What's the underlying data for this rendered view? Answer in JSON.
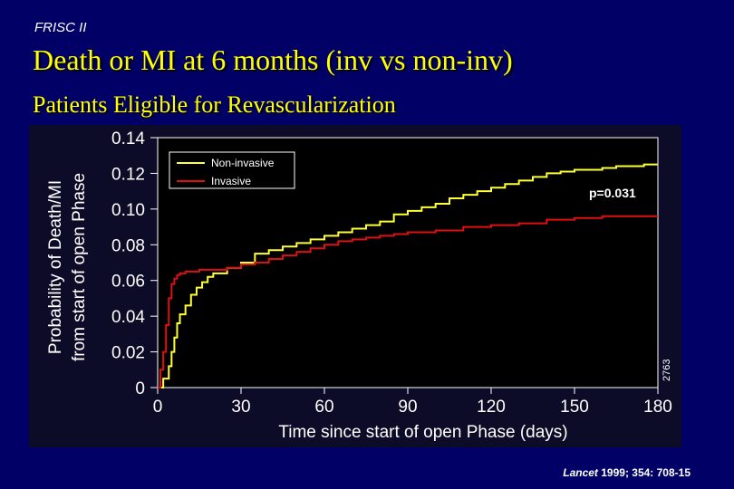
{
  "header": {
    "study": "FRISC II",
    "title": "Death or MI at 6 months (inv vs non-inv)",
    "subtitle": "Patients Eligible for Revascularization"
  },
  "citation": {
    "journal": "Lancet",
    "details": " 1999; 354: 708-15"
  },
  "figure_code": "2763",
  "colors": {
    "background": "#000066",
    "title": "#ffff00",
    "non_invasive": "#ffff33",
    "invasive": "#dd1111"
  },
  "chart_data": {
    "type": "line",
    "title": "",
    "xlabel": "Time since start of open Phase (days)",
    "ylabel": "Probability of Death/MI",
    "ylabel2": "from start of open Phase",
    "xlim": [
      0,
      180
    ],
    "ylim": [
      0,
      0.14
    ],
    "x_ticks": [
      0,
      30,
      60,
      90,
      120,
      150,
      180
    ],
    "x_tick_labels": [
      "0",
      "30",
      "60",
      "90",
      "120",
      "150",
      "180"
    ],
    "y_ticks": [
      0,
      0.02,
      0.04,
      0.06,
      0.08,
      0.1,
      0.12,
      0.14
    ],
    "y_tick_labels": [
      "0",
      "0.02",
      "0.04",
      "0.06",
      "0.08",
      "0.10",
      "0.12",
      "0.14"
    ],
    "legend_position": "top-left",
    "annotation": "p=0.031",
    "series": [
      {
        "name": "Non-invasive",
        "color": "#ffff33",
        "points": [
          [
            0,
            0.0
          ],
          [
            2,
            0.005
          ],
          [
            4,
            0.012
          ],
          [
            5,
            0.02
          ],
          [
            6,
            0.028
          ],
          [
            7,
            0.036
          ],
          [
            8,
            0.041
          ],
          [
            10,
            0.046
          ],
          [
            12,
            0.052
          ],
          [
            14,
            0.056
          ],
          [
            16,
            0.059
          ],
          [
            18,
            0.062
          ],
          [
            20,
            0.064
          ],
          [
            25,
            0.067
          ],
          [
            30,
            0.07
          ],
          [
            35,
            0.075
          ],
          [
            40,
            0.077
          ],
          [
            45,
            0.079
          ],
          [
            50,
            0.081
          ],
          [
            55,
            0.083
          ],
          [
            60,
            0.085
          ],
          [
            65,
            0.087
          ],
          [
            70,
            0.089
          ],
          [
            75,
            0.091
          ],
          [
            80,
            0.093
          ],
          [
            85,
            0.097
          ],
          [
            90,
            0.099
          ],
          [
            95,
            0.101
          ],
          [
            100,
            0.103
          ],
          [
            105,
            0.106
          ],
          [
            110,
            0.108
          ],
          [
            115,
            0.11
          ],
          [
            120,
            0.112
          ],
          [
            125,
            0.114
          ],
          [
            130,
            0.116
          ],
          [
            135,
            0.118
          ],
          [
            140,
            0.12
          ],
          [
            145,
            0.121
          ],
          [
            150,
            0.122
          ],
          [
            155,
            0.122
          ],
          [
            160,
            0.123
          ],
          [
            165,
            0.124
          ],
          [
            170,
            0.124
          ],
          [
            175,
            0.125
          ],
          [
            180,
            0.125
          ]
        ]
      },
      {
        "name": "Invasive",
        "color": "#dd1111",
        "points": [
          [
            0,
            0.0
          ],
          [
            1,
            0.01
          ],
          [
            2,
            0.02
          ],
          [
            3,
            0.035
          ],
          [
            4,
            0.05
          ],
          [
            5,
            0.058
          ],
          [
            6,
            0.061
          ],
          [
            7,
            0.063
          ],
          [
            8,
            0.064
          ],
          [
            10,
            0.065
          ],
          [
            15,
            0.066
          ],
          [
            20,
            0.066
          ],
          [
            25,
            0.067
          ],
          [
            30,
            0.069
          ],
          [
            35,
            0.07
          ],
          [
            40,
            0.072
          ],
          [
            45,
            0.074
          ],
          [
            50,
            0.076
          ],
          [
            55,
            0.078
          ],
          [
            60,
            0.08
          ],
          [
            65,
            0.082
          ],
          [
            70,
            0.083
          ],
          [
            75,
            0.084
          ],
          [
            80,
            0.085
          ],
          [
            85,
            0.086
          ],
          [
            90,
            0.087
          ],
          [
            100,
            0.088
          ],
          [
            110,
            0.09
          ],
          [
            120,
            0.091
          ],
          [
            130,
            0.092
          ],
          [
            140,
            0.094
          ],
          [
            150,
            0.095
          ],
          [
            160,
            0.096
          ],
          [
            170,
            0.096
          ],
          [
            180,
            0.096
          ]
        ]
      }
    ]
  }
}
